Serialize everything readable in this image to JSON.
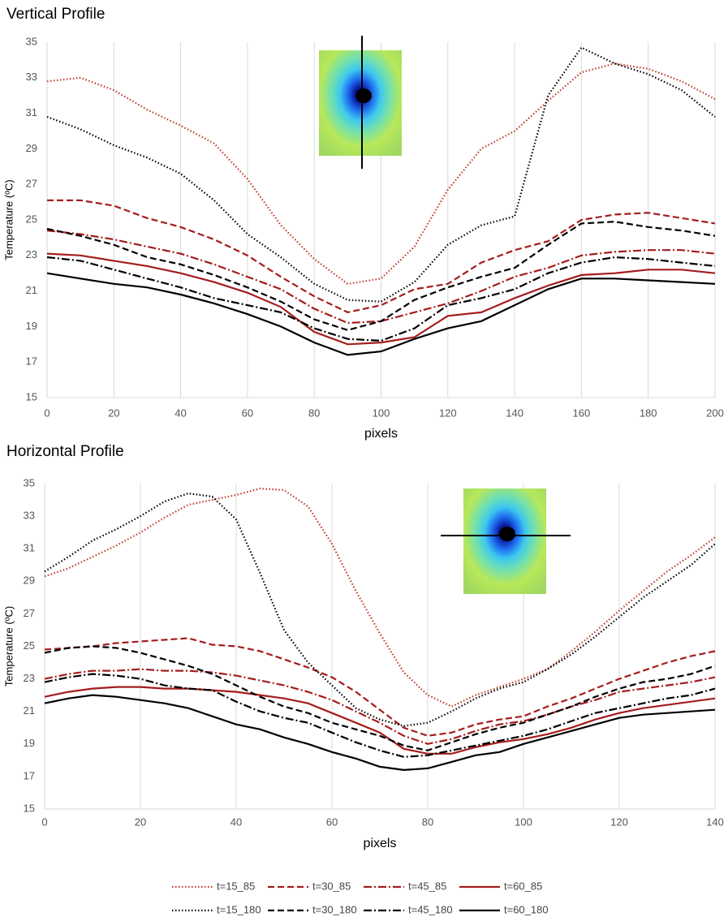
{
  "chart_data": [
    {
      "type": "line",
      "title": "Vertical Profile",
      "x_label": "pixels",
      "y_label": "Temperature (ºC)",
      "x": [
        0,
        10,
        20,
        30,
        40,
        50,
        60,
        70,
        80,
        90,
        100,
        110,
        120,
        130,
        140,
        150,
        160,
        170,
        180,
        190,
        200
      ],
      "xlim": [
        0,
        200
      ],
      "xticks": [
        0,
        20,
        40,
        60,
        80,
        100,
        120,
        140,
        160,
        180,
        200
      ],
      "ylim": [
        15,
        35
      ],
      "yticks": [
        15,
        17,
        19,
        21,
        23,
        25,
        27,
        29,
        31,
        33,
        35
      ],
      "grid": "x",
      "series": [
        {
          "name": "t=15_85",
          "color": "#c0392b",
          "dash": "dotted",
          "values": [
            32.8,
            33.0,
            32.3,
            31.2,
            30.3,
            29.3,
            27.3,
            24.7,
            22.8,
            21.4,
            21.7,
            23.5,
            26.7,
            29.0,
            30.0,
            31.7,
            33.3,
            33.8,
            33.5,
            32.8,
            31.8
          ]
        },
        {
          "name": "t=30_85",
          "color": "#a51c1c",
          "dash": "dashed",
          "values": [
            26.1,
            26.1,
            25.8,
            25.1,
            24.6,
            23.9,
            23.0,
            21.8,
            20.7,
            19.8,
            20.2,
            21.1,
            21.4,
            22.6,
            23.3,
            23.8,
            25.0,
            25.3,
            25.4,
            25.1,
            24.8
          ]
        },
        {
          "name": "t=45_85",
          "color": "#a51c1c",
          "dash": "dashdot",
          "values": [
            24.4,
            24.2,
            23.9,
            23.5,
            23.1,
            22.5,
            21.8,
            21.1,
            20.0,
            19.2,
            19.3,
            19.8,
            20.3,
            21.0,
            21.8,
            22.3,
            23.0,
            23.2,
            23.3,
            23.3,
            23.1
          ]
        },
        {
          "name": "t=60_85",
          "color": "#a51c1c",
          "dash": "solid",
          "values": [
            23.1,
            23.0,
            22.7,
            22.4,
            22.0,
            21.5,
            20.9,
            20.1,
            18.7,
            18.0,
            18.1,
            18.4,
            19.6,
            19.8,
            20.6,
            21.3,
            21.9,
            22.0,
            22.2,
            22.2,
            22.0
          ]
        },
        {
          "name": "t=15_180",
          "color": "#000000",
          "dash": "dotted",
          "values": [
            30.8,
            30.1,
            29.2,
            28.5,
            27.6,
            26.1,
            24.2,
            22.9,
            21.4,
            20.5,
            20.4,
            21.5,
            23.6,
            24.7,
            25.2,
            32.0,
            34.7,
            33.8,
            33.2,
            32.3,
            30.8
          ]
        },
        {
          "name": "t=30_180",
          "color": "#000000",
          "dash": "dashed",
          "values": [
            24.5,
            24.1,
            23.6,
            22.9,
            22.5,
            21.9,
            21.2,
            20.4,
            19.4,
            18.8,
            19.3,
            20.5,
            21.2,
            21.8,
            22.3,
            23.6,
            24.8,
            24.9,
            24.6,
            24.4,
            24.1
          ]
        },
        {
          "name": "t=45_180",
          "color": "#000000",
          "dash": "dashdot",
          "values": [
            22.9,
            22.7,
            22.2,
            21.7,
            21.2,
            20.6,
            20.2,
            19.8,
            18.9,
            18.3,
            18.2,
            18.9,
            20.2,
            20.6,
            21.1,
            22.0,
            22.6,
            22.9,
            22.8,
            22.6,
            22.4
          ]
        },
        {
          "name": "t=60_180",
          "color": "#000000",
          "dash": "solid",
          "values": [
            22.0,
            21.7,
            21.4,
            21.2,
            20.8,
            20.3,
            19.7,
            19.0,
            18.1,
            17.4,
            17.6,
            18.3,
            18.9,
            19.3,
            20.2,
            21.1,
            21.7,
            21.7,
            21.6,
            21.5,
            21.4
          ]
        }
      ]
    },
    {
      "type": "line",
      "title": "Horizontal Profile",
      "x_label": "pixels",
      "y_label": "Temperature (ºC)",
      "x": [
        0,
        5,
        10,
        15,
        20,
        25,
        30,
        35,
        40,
        45,
        50,
        55,
        60,
        65,
        70,
        75,
        80,
        85,
        90,
        95,
        100,
        105,
        110,
        115,
        120,
        125,
        130,
        135,
        140
      ],
      "xlim": [
        0,
        140
      ],
      "xticks": [
        0,
        20,
        40,
        60,
        80,
        100,
        120,
        140
      ],
      "ylim": [
        15,
        35
      ],
      "yticks": [
        15,
        17,
        19,
        21,
        23,
        25,
        27,
        29,
        31,
        33,
        35
      ],
      "grid": "x",
      "series": [
        {
          "color": "#c0392b",
          "dash": "dotted",
          "values": [
            29.3,
            29.8,
            30.5,
            31.2,
            32.0,
            32.9,
            33.7,
            34.0,
            34.3,
            34.7,
            34.6,
            33.6,
            31.3,
            28.4,
            25.8,
            23.4,
            22.0,
            21.3,
            22.0,
            22.5,
            23.0,
            23.6,
            24.7,
            25.9,
            27.2,
            28.4,
            29.6,
            30.6,
            31.7
          ]
        },
        {
          "color": "#a51c1c",
          "dash": "dashed",
          "values": [
            24.8,
            24.9,
            25.0,
            25.2,
            25.3,
            25.4,
            25.5,
            25.1,
            25.0,
            24.7,
            24.2,
            23.7,
            23.1,
            22.2,
            21.1,
            20.0,
            19.5,
            19.7,
            20.2,
            20.5,
            20.7,
            21.3,
            21.8,
            22.4,
            23.0,
            23.5,
            24.0,
            24.4,
            24.7
          ]
        },
        {
          "color": "#a51c1c",
          "dash": "dashdot",
          "values": [
            23.0,
            23.3,
            23.5,
            23.5,
            23.6,
            23.5,
            23.5,
            23.4,
            23.2,
            22.9,
            22.6,
            22.2,
            21.7,
            21.0,
            20.3,
            19.5,
            19.0,
            19.3,
            19.8,
            20.2,
            20.4,
            20.8,
            21.3,
            21.7,
            22.2,
            22.4,
            22.6,
            22.8,
            23.1
          ]
        },
        {
          "color": "#a51c1c",
          "dash": "solid",
          "values": [
            21.9,
            22.2,
            22.4,
            22.5,
            22.5,
            22.4,
            22.4,
            22.3,
            22.2,
            22.0,
            21.8,
            21.5,
            20.9,
            20.3,
            19.7,
            18.7,
            18.4,
            18.4,
            18.8,
            19.1,
            19.3,
            19.6,
            20.0,
            20.5,
            20.9,
            21.2,
            21.4,
            21.6,
            21.8
          ]
        },
        {
          "color": "#000000",
          "dash": "dotted",
          "values": [
            29.6,
            30.5,
            31.5,
            32.2,
            33.0,
            33.9,
            34.4,
            34.2,
            32.8,
            29.5,
            26.0,
            24.0,
            22.6,
            21.2,
            20.5,
            20.1,
            20.3,
            21.0,
            21.8,
            22.4,
            22.8,
            23.6,
            24.5,
            25.6,
            26.8,
            28.0,
            29.0,
            30.0,
            31.3
          ]
        },
        {
          "color": "#000000",
          "dash": "dashed",
          "values": [
            24.6,
            24.9,
            25.0,
            24.9,
            24.6,
            24.2,
            23.8,
            23.3,
            22.6,
            21.9,
            21.3,
            20.9,
            20.3,
            19.9,
            19.5,
            18.9,
            18.6,
            19.1,
            19.6,
            20.0,
            20.3,
            20.8,
            21.3,
            21.9,
            22.4,
            22.8,
            23.0,
            23.3,
            23.8
          ]
        },
        {
          "color": "#000000",
          "dash": "dashdot",
          "values": [
            22.8,
            23.1,
            23.3,
            23.2,
            23.0,
            22.6,
            22.4,
            22.3,
            21.6,
            21.0,
            20.6,
            20.3,
            19.7,
            19.1,
            18.6,
            18.2,
            18.3,
            18.6,
            18.9,
            19.2,
            19.5,
            19.9,
            20.4,
            20.9,
            21.2,
            21.5,
            21.8,
            22.0,
            22.4
          ]
        },
        {
          "color": "#000000",
          "dash": "solid",
          "values": [
            21.5,
            21.8,
            22.0,
            21.9,
            21.7,
            21.5,
            21.2,
            20.7,
            20.2,
            19.9,
            19.4,
            19.0,
            18.5,
            18.1,
            17.6,
            17.4,
            17.5,
            17.9,
            18.3,
            18.5,
            19.0,
            19.4,
            19.8,
            20.2,
            20.6,
            20.8,
            20.9,
            21.0,
            21.1
          ]
        }
      ]
    }
  ]
}
